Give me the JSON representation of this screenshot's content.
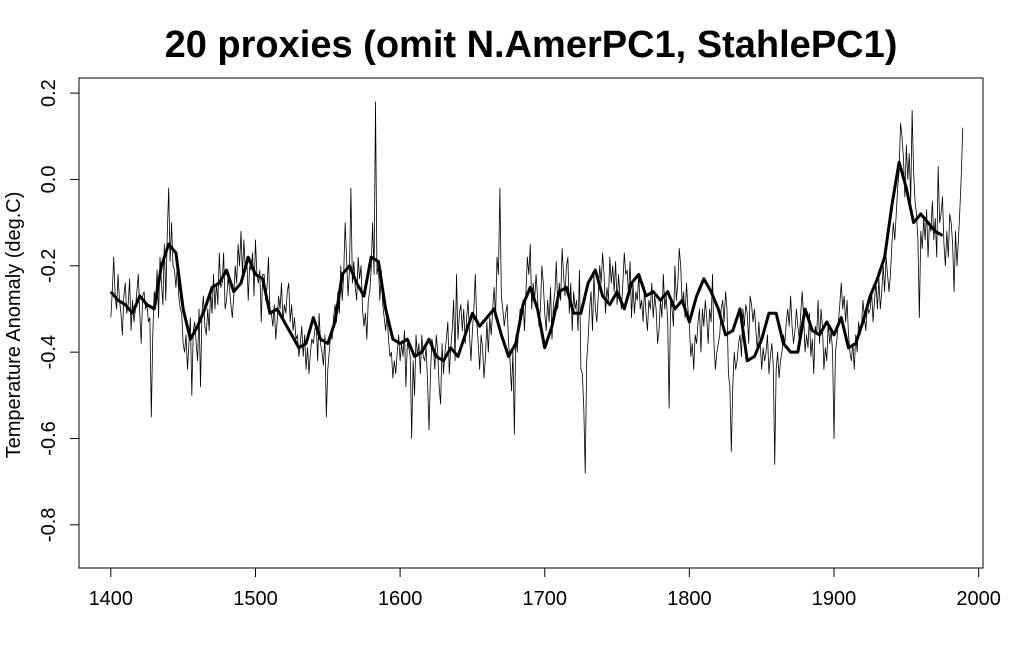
{
  "chart_data": {
    "type": "line",
    "title": "20 proxies (omit N.AmerPC1, StahlePC1)",
    "xlabel": "",
    "ylabel": "Temperature Anomaly (deg.C)",
    "xlim": [
      1378,
      2003
    ],
    "ylim": [
      -0.9,
      0.235
    ],
    "x_ticks": [
      "1400",
      "1500",
      "1600",
      "1700",
      "1800",
      "1900",
      "2000"
    ],
    "y_ticks": [
      "-0.8",
      "-0.6",
      "-0.4",
      "-0.2",
      "0.0",
      "0.2"
    ],
    "grid": false,
    "legend": "none",
    "series": [
      {
        "style": "thin",
        "x_start": 1400,
        "x_step": 1,
        "values": [
          -0.32,
          -0.26,
          -0.18,
          -0.27,
          -0.3,
          -0.22,
          -0.28,
          -0.31,
          -0.36,
          -0.27,
          -0.24,
          -0.31,
          -0.29,
          -0.23,
          -0.35,
          -0.28,
          -0.33,
          -0.3,
          -0.26,
          -0.22,
          -0.31,
          -0.38,
          -0.27,
          -0.26,
          -0.3,
          -0.29,
          -0.33,
          -0.32,
          -0.55,
          -0.36,
          -0.26,
          -0.28,
          -0.21,
          -0.32,
          -0.18,
          -0.24,
          -0.29,
          -0.15,
          -0.28,
          -0.13,
          -0.02,
          -0.19,
          -0.1,
          -0.2,
          -0.21,
          -0.25,
          -0.2,
          -0.27,
          -0.3,
          -0.31,
          -0.38,
          -0.4,
          -0.36,
          -0.44,
          -0.38,
          -0.32,
          -0.5,
          -0.35,
          -0.33,
          -0.38,
          -0.42,
          -0.3,
          -0.48,
          -0.31,
          -0.27,
          -0.34,
          -0.36,
          -0.3,
          -0.35,
          -0.26,
          -0.31,
          -0.22,
          -0.3,
          -0.24,
          -0.29,
          -0.17,
          -0.25,
          -0.24,
          -0.17,
          -0.3,
          -0.28,
          -0.23,
          -0.25,
          -0.29,
          -0.32,
          -0.27,
          -0.2,
          -0.24,
          -0.15,
          -0.2,
          -0.12,
          -0.22,
          -0.14,
          -0.21,
          -0.18,
          -0.28,
          -0.2,
          -0.21,
          -0.17,
          -0.27,
          -0.14,
          -0.22,
          -0.24,
          -0.21,
          -0.33,
          -0.22,
          -0.22,
          -0.28,
          -0.25,
          -0.18,
          -0.3,
          -0.31,
          -0.34,
          -0.29,
          -0.37,
          -0.33,
          -0.27,
          -0.3,
          -0.24,
          -0.33,
          -0.29,
          -0.31,
          -0.26,
          -0.24,
          -0.33,
          -0.29,
          -0.35,
          -0.32,
          -0.37,
          -0.36,
          -0.41,
          -0.38,
          -0.34,
          -0.41,
          -0.36,
          -0.44,
          -0.39,
          -0.45,
          -0.4,
          -0.37,
          -0.38,
          -0.35,
          -0.33,
          -0.42,
          -0.31,
          -0.38,
          -0.4,
          -0.43,
          -0.36,
          -0.55,
          -0.44,
          -0.4,
          -0.36,
          -0.37,
          -0.32,
          -0.29,
          -0.33,
          -0.26,
          -0.31,
          -0.2,
          -0.28,
          -0.22,
          -0.1,
          -0.18,
          -0.27,
          -0.21,
          -0.02,
          -0.24,
          -0.19,
          -0.25,
          -0.28,
          -0.18,
          -0.23,
          -0.2,
          -0.3,
          -0.34,
          -0.31,
          -0.37,
          -0.28,
          -0.26,
          -0.21,
          -0.1,
          -0.22,
          0.18,
          -0.22,
          -0.2,
          -0.28,
          -0.21,
          -0.29,
          -0.32,
          -0.35,
          -0.31,
          -0.37,
          -0.41,
          -0.4,
          -0.46,
          -0.42,
          -0.45,
          -0.4,
          -0.36,
          -0.42,
          -0.38,
          -0.41,
          -0.35,
          -0.48,
          -0.38,
          -0.39,
          -0.41,
          -0.6,
          -0.42,
          -0.5,
          -0.36,
          -0.41,
          -0.38,
          -0.45,
          -0.36,
          -0.41,
          -0.42,
          -0.39,
          -0.47,
          -0.58,
          -0.45,
          -0.37,
          -0.39,
          -0.44,
          -0.36,
          -0.4,
          -0.48,
          -0.52,
          -0.38,
          -0.45,
          -0.4,
          -0.37,
          -0.33,
          -0.45,
          -0.39,
          -0.35,
          -0.28,
          -0.42,
          -0.22,
          -0.37,
          -0.31,
          -0.29,
          -0.35,
          -0.3,
          -0.38,
          -0.32,
          -0.28,
          -0.36,
          -0.42,
          -0.35,
          -0.3,
          -0.22,
          -0.33,
          -0.38,
          -0.44,
          -0.36,
          -0.39,
          -0.46,
          -0.41,
          -0.33,
          -0.4,
          -0.32,
          -0.36,
          -0.3,
          -0.25,
          -0.32,
          -0.18,
          -0.22,
          -0.02,
          -0.27,
          -0.3,
          -0.34,
          -0.31,
          -0.29,
          -0.38,
          -0.42,
          -0.49,
          -0.4,
          -0.59,
          -0.36,
          -0.4,
          -0.34,
          -0.3,
          -0.3,
          -0.28,
          -0.35,
          -0.26,
          -0.18,
          -0.22,
          -0.15,
          -0.3,
          -0.24,
          -0.28,
          -0.22,
          -0.27,
          -0.34,
          -0.3,
          -0.2,
          -0.24,
          -0.31,
          -0.35,
          -0.28,
          -0.33,
          -0.25,
          -0.37,
          -0.29,
          -0.26,
          -0.19,
          -0.3,
          -0.24,
          -0.28,
          -0.16,
          -0.22,
          -0.27,
          -0.2,
          -0.18,
          -0.31,
          -0.24,
          -0.35,
          -0.26,
          -0.3,
          -0.28,
          -0.35,
          -0.21,
          -0.44,
          -0.45,
          -0.53,
          -0.68,
          -0.42,
          -0.37,
          -0.3,
          -0.26,
          -0.35,
          -0.22,
          -0.3,
          -0.33,
          -0.27,
          -0.2,
          -0.24,
          -0.17,
          -0.22,
          -0.31,
          -0.25,
          -0.28,
          -0.18,
          -0.24,
          -0.2,
          -0.26,
          -0.19,
          -0.29,
          -0.22,
          -0.27,
          -0.3,
          -0.24,
          -0.17,
          -0.22,
          -0.21,
          -0.27,
          -0.19,
          -0.32,
          -0.24,
          -0.31,
          -0.26,
          -0.28,
          -0.22,
          -0.3,
          -0.28,
          -0.33,
          -0.25,
          -0.31,
          -0.35,
          -0.28,
          -0.3,
          -0.24,
          -0.32,
          -0.27,
          -0.3,
          -0.38,
          -0.35,
          -0.28,
          -0.32,
          -0.22,
          -0.3,
          -0.27,
          -0.33,
          -0.53,
          -0.28,
          -0.3,
          -0.34,
          -0.2,
          -0.28,
          -0.24,
          -0.16,
          -0.2,
          -0.29,
          -0.26,
          -0.32,
          -0.24,
          -0.3,
          -0.34,
          -0.41,
          -0.38,
          -0.44,
          -0.36,
          -0.38,
          -0.33,
          -0.3,
          -0.4,
          -0.3,
          -0.34,
          -0.28,
          -0.32,
          -0.38,
          -0.3,
          -0.33,
          -0.22,
          -0.38,
          -0.44,
          -0.4,
          -0.38,
          -0.36,
          -0.3,
          -0.28,
          -0.33,
          -0.26,
          -0.3,
          -0.45,
          -0.48,
          -0.63,
          -0.48,
          -0.4,
          -0.44,
          -0.42,
          -0.38,
          -0.36,
          -0.41,
          -0.3,
          -0.34,
          -0.29,
          -0.31,
          -0.38,
          -0.27,
          -0.29,
          -0.33,
          -0.3,
          -0.35,
          -0.4,
          -0.33,
          -0.38,
          -0.44,
          -0.39,
          -0.42,
          -0.4,
          -0.36,
          -0.45,
          -0.41,
          -0.38,
          -0.43,
          -0.66,
          -0.44,
          -0.4,
          -0.46,
          -0.42,
          -0.4,
          -0.36,
          -0.38,
          -0.33,
          -0.3,
          -0.34,
          -0.27,
          -0.34,
          -0.38,
          -0.35,
          -0.3,
          -0.34,
          -0.37,
          -0.31,
          -0.26,
          -0.32,
          -0.4,
          -0.36,
          -0.39,
          -0.31,
          -0.41,
          -0.37,
          -0.45,
          -0.34,
          -0.36,
          -0.28,
          -0.38,
          -0.3,
          -0.34,
          -0.44,
          -0.39,
          -0.42,
          -0.33,
          -0.38,
          -0.35,
          -0.4,
          -0.6,
          -0.4,
          -0.37,
          -0.33,
          -0.29,
          -0.24,
          -0.3,
          -0.27,
          -0.33,
          -0.28,
          -0.36,
          -0.4,
          -0.42,
          -0.38,
          -0.44,
          -0.36,
          -0.4,
          -0.33,
          -0.36,
          -0.34,
          -0.28,
          -0.32,
          -0.35,
          -0.29,
          -0.31,
          -0.3,
          -0.26,
          -0.33,
          -0.28,
          -0.24,
          -0.3,
          -0.23,
          -0.3,
          -0.26,
          -0.2,
          -0.26,
          -0.18,
          -0.22,
          -0.26,
          -0.22,
          -0.15,
          -0.1,
          -0.14,
          -0.08,
          -0.02,
          0.02,
          0.13,
          0.1,
          0.05,
          -0.04,
          0.08,
          0.0,
          0.06,
          -0.05,
          0.16,
          0.02,
          -0.05,
          -0.08,
          -0.14,
          -0.32,
          -0.12,
          -0.16,
          -0.09,
          -0.14,
          -0.07,
          -0.18,
          -0.1,
          -0.12,
          -0.05,
          -0.14,
          -0.09,
          -0.18,
          0.03,
          -0.1,
          -0.08,
          -0.04,
          -0.15,
          -0.2,
          -0.12,
          -0.18,
          -0.08,
          -0.1,
          -0.15,
          -0.26,
          -0.12,
          -0.2,
          -0.14,
          -0.07,
          0.01,
          0.12
        ]
      },
      {
        "style": "smoothed",
        "x": [
          1400,
          1405,
          1410,
          1415,
          1420,
          1425,
          1430,
          1435,
          1440,
          1445,
          1450,
          1455,
          1460,
          1465,
          1470,
          1475,
          1480,
          1485,
          1490,
          1495,
          1500,
          1505,
          1510,
          1515,
          1520,
          1525,
          1530,
          1535,
          1540,
          1545,
          1550,
          1555,
          1560,
          1565,
          1570,
          1575,
          1580,
          1585,
          1590,
          1595,
          1600,
          1605,
          1610,
          1615,
          1620,
          1625,
          1630,
          1635,
          1640,
          1645,
          1650,
          1655,
          1660,
          1665,
          1670,
          1675,
          1680,
          1685,
          1690,
          1695,
          1700,
          1705,
          1710,
          1715,
          1720,
          1725,
          1730,
          1735,
          1740,
          1745,
          1750,
          1755,
          1760,
          1765,
          1770,
          1775,
          1780,
          1785,
          1790,
          1795,
          1800,
          1805,
          1810,
          1815,
          1820,
          1825,
          1830,
          1835,
          1840,
          1845,
          1850,
          1855,
          1860,
          1865,
          1870,
          1875,
          1880,
          1885,
          1890,
          1895,
          1900,
          1905,
          1910,
          1915,
          1920,
          1925,
          1930,
          1935,
          1940,
          1945,
          1950,
          1955,
          1960,
          1965,
          1970,
          1975
        ],
        "values": [
          -0.26,
          -0.28,
          -0.29,
          -0.31,
          -0.27,
          -0.29,
          -0.3,
          -0.2,
          -0.15,
          -0.17,
          -0.3,
          -0.37,
          -0.34,
          -0.3,
          -0.25,
          -0.24,
          -0.21,
          -0.26,
          -0.24,
          -0.18,
          -0.22,
          -0.23,
          -0.31,
          -0.3,
          -0.33,
          -0.36,
          -0.39,
          -0.38,
          -0.32,
          -0.37,
          -0.38,
          -0.33,
          -0.22,
          -0.2,
          -0.24,
          -0.27,
          -0.18,
          -0.19,
          -0.3,
          -0.37,
          -0.38,
          -0.37,
          -0.41,
          -0.4,
          -0.37,
          -0.41,
          -0.42,
          -0.39,
          -0.41,
          -0.36,
          -0.31,
          -0.34,
          -0.32,
          -0.3,
          -0.36,
          -0.41,
          -0.38,
          -0.29,
          -0.25,
          -0.3,
          -0.39,
          -0.34,
          -0.26,
          -0.25,
          -0.31,
          -0.31,
          -0.24,
          -0.21,
          -0.27,
          -0.29,
          -0.26,
          -0.3,
          -0.24,
          -0.22,
          -0.27,
          -0.26,
          -0.28,
          -0.26,
          -0.3,
          -0.28,
          -0.33,
          -0.27,
          -0.23,
          -0.26,
          -0.3,
          -0.36,
          -0.35,
          -0.3,
          -0.42,
          -0.41,
          -0.37,
          -0.31,
          -0.31,
          -0.38,
          -0.4,
          -0.4,
          -0.3,
          -0.35,
          -0.36,
          -0.33,
          -0.36,
          -0.32,
          -0.39,
          -0.38,
          -0.33,
          -0.27,
          -0.23,
          -0.18,
          -0.06,
          0.04,
          -0.02,
          -0.1,
          -0.08,
          -0.1,
          -0.12,
          -0.13
        ]
      }
    ]
  }
}
